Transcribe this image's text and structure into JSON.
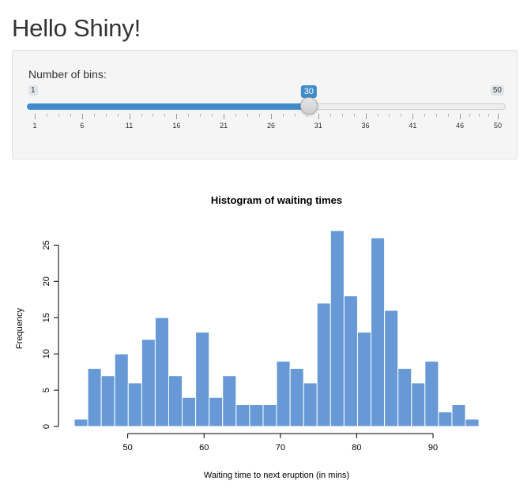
{
  "page": {
    "title": "Hello Shiny!"
  },
  "sidebar": {
    "bins_input": {
      "label": "Number of bins:",
      "min": 1,
      "max": 50,
      "value": 30,
      "min_label": "1",
      "max_label": "50",
      "value_label": "30",
      "tick_labels": [
        "1",
        "6",
        "11",
        "16",
        "21",
        "26",
        "31",
        "36",
        "41",
        "46",
        "50"
      ],
      "tick_values": [
        1,
        6,
        11,
        16,
        21,
        26,
        31,
        36,
        41,
        46,
        50
      ]
    }
  },
  "colors": {
    "accent": "#428bca",
    "bar_fill": "#6699d6",
    "bar_border": "#ffffff"
  },
  "chart_data": {
    "type": "bar",
    "title": "Histogram of waiting times",
    "xlabel": "Waiting time to next eruption (in mins)",
    "ylabel": "Frequency",
    "bin_start": 43.0,
    "bin_width": 1.767,
    "values": [
      1,
      8,
      7,
      10,
      6,
      12,
      15,
      7,
      4,
      13,
      4,
      7,
      3,
      3,
      3,
      9,
      8,
      6,
      17,
      27,
      18,
      13,
      26,
      16,
      8,
      6,
      9,
      2,
      3,
      1
    ],
    "xlim": [
      43,
      96
    ],
    "ylim": [
      0,
      27
    ],
    "x_ticks": [
      50,
      60,
      70,
      80,
      90
    ],
    "y_ticks": [
      0,
      5,
      10,
      15,
      20,
      25
    ],
    "grid": false
  }
}
